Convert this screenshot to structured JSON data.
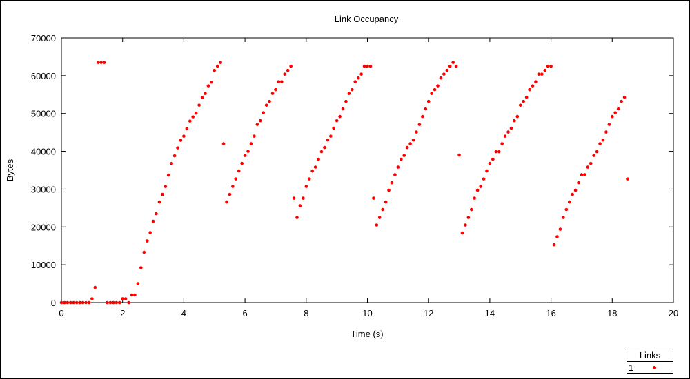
{
  "chart_data": {
    "type": "scatter",
    "title": "Link Occupancy",
    "xlabel": "Time (s)",
    "ylabel": "Bytes",
    "xlim": [
      0,
      20
    ],
    "ylim": [
      0,
      70000
    ],
    "xticks": [
      0,
      2,
      4,
      6,
      8,
      10,
      12,
      14,
      16,
      18,
      20
    ],
    "yticks": [
      0,
      10000,
      20000,
      30000,
      40000,
      50000,
      60000,
      70000
    ],
    "grid": false,
    "legend": {
      "title": "Links",
      "placement": "bottom-right"
    },
    "series": [
      {
        "name": "1",
        "color": "#ff0000",
        "points": [
          [
            0.0,
            0
          ],
          [
            0.1,
            0
          ],
          [
            0.2,
            0
          ],
          [
            0.3,
            0
          ],
          [
            0.4,
            0
          ],
          [
            0.5,
            0
          ],
          [
            0.6,
            0
          ],
          [
            0.7,
            0
          ],
          [
            0.8,
            0
          ],
          [
            0.9,
            0
          ],
          [
            1.0,
            1000
          ],
          [
            1.1,
            4000
          ],
          [
            1.2,
            63500
          ],
          [
            1.3,
            63500
          ],
          [
            1.4,
            63500
          ],
          [
            1.5,
            0
          ],
          [
            1.6,
            0
          ],
          [
            1.7,
            0
          ],
          [
            1.8,
            0
          ],
          [
            1.9,
            0
          ],
          [
            2.0,
            1000
          ],
          [
            2.1,
            1000
          ],
          [
            2.2,
            0
          ],
          [
            2.3,
            2000
          ],
          [
            2.4,
            2000
          ],
          [
            2.5,
            5000
          ],
          [
            2.6,
            9200
          ],
          [
            2.7,
            13300
          ],
          [
            2.8,
            16300
          ],
          [
            2.9,
            18500
          ],
          [
            3.0,
            21500
          ],
          [
            3.1,
            23500
          ],
          [
            3.2,
            26600
          ],
          [
            3.3,
            28600
          ],
          [
            3.4,
            30700
          ],
          [
            3.5,
            33700
          ],
          [
            3.6,
            36800
          ],
          [
            3.7,
            38800
          ],
          [
            3.8,
            40900
          ],
          [
            3.9,
            42900
          ],
          [
            4.0,
            44000
          ],
          [
            4.1,
            46000
          ],
          [
            4.2,
            48000
          ],
          [
            4.3,
            49100
          ],
          [
            4.4,
            50100
          ],
          [
            4.5,
            52200
          ],
          [
            4.6,
            54200
          ],
          [
            4.7,
            55300
          ],
          [
            4.8,
            57300
          ],
          [
            4.9,
            58300
          ],
          [
            5.0,
            61400
          ],
          [
            5.1,
            62500
          ],
          [
            5.2,
            63500
          ],
          [
            5.3,
            42000
          ],
          [
            5.4,
            26600
          ],
          [
            5.5,
            28600
          ],
          [
            5.6,
            30700
          ],
          [
            5.7,
            32700
          ],
          [
            5.8,
            34800
          ],
          [
            5.9,
            36800
          ],
          [
            6.0,
            38900
          ],
          [
            6.1,
            40000
          ],
          [
            6.2,
            42000
          ],
          [
            6.3,
            44000
          ],
          [
            6.4,
            47100
          ],
          [
            6.5,
            48100
          ],
          [
            6.6,
            50200
          ],
          [
            6.7,
            52200
          ],
          [
            6.8,
            53200
          ],
          [
            6.9,
            55300
          ],
          [
            7.0,
            56300
          ],
          [
            7.1,
            58400
          ],
          [
            7.2,
            58400
          ],
          [
            7.3,
            60400
          ],
          [
            7.4,
            61400
          ],
          [
            7.5,
            62500
          ],
          [
            7.6,
            27600
          ],
          [
            7.7,
            22500
          ],
          [
            7.8,
            25600
          ],
          [
            7.9,
            27600
          ],
          [
            8.0,
            30700
          ],
          [
            8.1,
            32700
          ],
          [
            8.2,
            34800
          ],
          [
            8.3,
            35800
          ],
          [
            8.4,
            37900
          ],
          [
            8.5,
            39900
          ],
          [
            8.6,
            41000
          ],
          [
            8.7,
            43000
          ],
          [
            8.8,
            44000
          ],
          [
            8.9,
            46100
          ],
          [
            9.0,
            48100
          ],
          [
            9.1,
            49200
          ],
          [
            9.2,
            51200
          ],
          [
            9.3,
            53200
          ],
          [
            9.4,
            55300
          ],
          [
            9.5,
            56300
          ],
          [
            9.6,
            58400
          ],
          [
            9.7,
            59400
          ],
          [
            9.8,
            60400
          ],
          [
            9.9,
            62500
          ],
          [
            10.0,
            62500
          ],
          [
            10.1,
            62500
          ],
          [
            10.2,
            27600
          ],
          [
            10.3,
            20500
          ],
          [
            10.4,
            22500
          ],
          [
            10.5,
            24600
          ],
          [
            10.6,
            26600
          ],
          [
            10.7,
            29700
          ],
          [
            10.8,
            31700
          ],
          [
            10.9,
            33800
          ],
          [
            11.0,
            35800
          ],
          [
            11.1,
            37900
          ],
          [
            11.2,
            38900
          ],
          [
            11.3,
            41000
          ],
          [
            11.4,
            42000
          ],
          [
            11.5,
            43000
          ],
          [
            11.6,
            45100
          ],
          [
            11.7,
            47100
          ],
          [
            11.8,
            49200
          ],
          [
            11.9,
            51200
          ],
          [
            12.0,
            53200
          ],
          [
            12.1,
            55300
          ],
          [
            12.2,
            56300
          ],
          [
            12.3,
            57300
          ],
          [
            12.4,
            59400
          ],
          [
            12.5,
            60400
          ],
          [
            12.6,
            61400
          ],
          [
            12.7,
            62500
          ],
          [
            12.8,
            63500
          ],
          [
            12.9,
            62500
          ],
          [
            13.0,
            39000
          ],
          [
            13.1,
            18400
          ],
          [
            13.2,
            20500
          ],
          [
            13.3,
            22500
          ],
          [
            13.4,
            24600
          ],
          [
            13.5,
            27600
          ],
          [
            13.6,
            29700
          ],
          [
            13.7,
            30700
          ],
          [
            13.8,
            32700
          ],
          [
            13.9,
            34800
          ],
          [
            14.0,
            36800
          ],
          [
            14.1,
            37900
          ],
          [
            14.2,
            39900
          ],
          [
            14.3,
            39900
          ],
          [
            14.4,
            42000
          ],
          [
            14.5,
            44000
          ],
          [
            14.6,
            45100
          ],
          [
            14.7,
            46100
          ],
          [
            14.8,
            48100
          ],
          [
            14.9,
            49200
          ],
          [
            15.0,
            52200
          ],
          [
            15.1,
            53200
          ],
          [
            15.2,
            54300
          ],
          [
            15.3,
            56300
          ],
          [
            15.4,
            57300
          ],
          [
            15.5,
            58400
          ],
          [
            15.6,
            60400
          ],
          [
            15.7,
            60400
          ],
          [
            15.8,
            61400
          ],
          [
            15.9,
            62500
          ],
          [
            16.0,
            62500
          ],
          [
            16.1,
            15300
          ],
          [
            16.2,
            17400
          ],
          [
            16.3,
            19400
          ],
          [
            16.4,
            22500
          ],
          [
            16.5,
            24600
          ],
          [
            16.6,
            26600
          ],
          [
            16.7,
            28600
          ],
          [
            16.8,
            29700
          ],
          [
            16.9,
            31700
          ],
          [
            17.0,
            33800
          ],
          [
            17.1,
            33800
          ],
          [
            17.2,
            35800
          ],
          [
            17.3,
            36800
          ],
          [
            17.4,
            38900
          ],
          [
            17.5,
            39900
          ],
          [
            17.6,
            42000
          ],
          [
            17.7,
            43000
          ],
          [
            17.8,
            45100
          ],
          [
            17.9,
            47100
          ],
          [
            18.0,
            49200
          ],
          [
            18.1,
            50200
          ],
          [
            18.2,
            51200
          ],
          [
            18.3,
            53200
          ],
          [
            18.4,
            54300
          ],
          [
            18.5,
            32700
          ]
        ]
      }
    ]
  }
}
